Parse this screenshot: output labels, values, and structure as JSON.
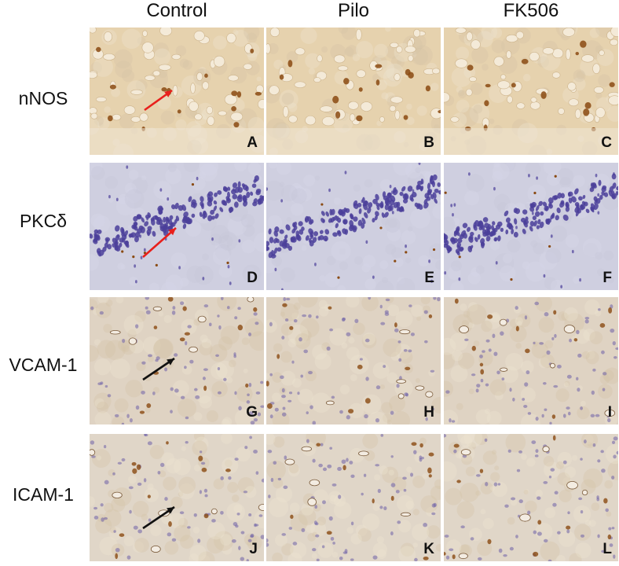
{
  "columns": [
    "Control",
    "Pilo",
    "FK506"
  ],
  "rows": [
    {
      "label": "nNOS",
      "stain": "nnos",
      "panels": [
        "A",
        "B",
        "C"
      ]
    },
    {
      "label": "PKCδ",
      "stain": "pkc",
      "panels": [
        "D",
        "E",
        "F"
      ]
    },
    {
      "label": "VCAM-1",
      "stain": "vcam",
      "panels": [
        "G",
        "H",
        "I"
      ]
    },
    {
      "label": "ICAM-1",
      "stain": "icam",
      "panels": [
        "J",
        "K",
        "L"
      ]
    }
  ],
  "arrows": [
    {
      "panel": "A",
      "color": "#e8201c"
    },
    {
      "panel": "D",
      "color": "#e8201c"
    },
    {
      "panel": "G",
      "color": "#111111"
    },
    {
      "panel": "J",
      "color": "#111111"
    }
  ],
  "colors": {
    "nnos_bg": "#e6d2ae",
    "pkc_bg": "#cfcfe0",
    "vcam_bg": "#dfd3c3",
    "icam_bg": "#e0d6c8",
    "brown_cell": "#8a4a12",
    "blue_nucleus": "#4b3f9a",
    "red_arrow": "#e8201c",
    "black_arrow": "#111111"
  }
}
